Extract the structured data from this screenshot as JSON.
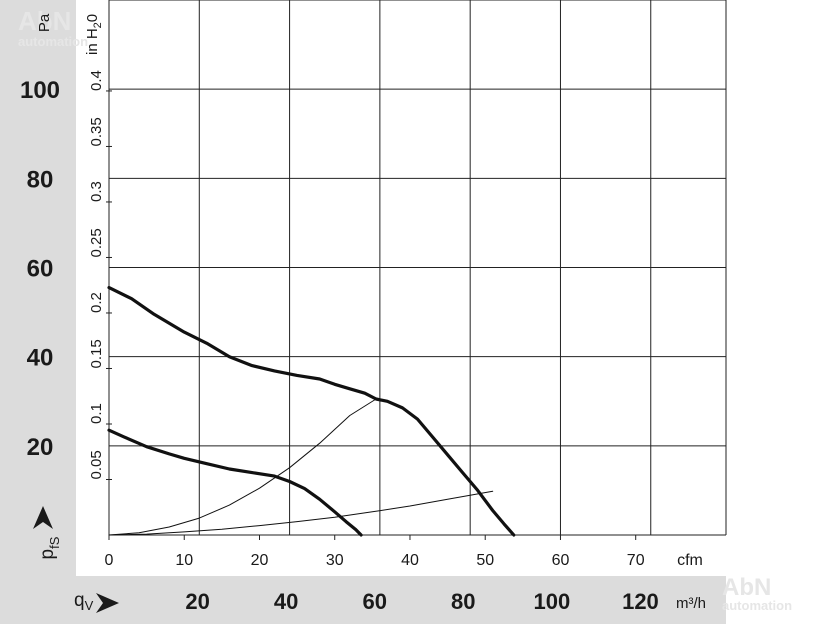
{
  "watermark": {
    "brand": "AbN",
    "sub": "automation"
  },
  "chart_data": {
    "type": "line",
    "x_axis_primary": {
      "unit": "cfm",
      "range": [
        0,
        82
      ],
      "ticks": [
        0,
        10,
        20,
        30,
        40,
        50,
        60,
        70
      ]
    },
    "x_axis_secondary": {
      "symbol_main": "q",
      "symbol_sub": "V",
      "unit": "m³/h",
      "ticks": [
        20,
        40,
        60,
        80,
        100,
        120
      ]
    },
    "y_axis_primary": {
      "unit": "Pa",
      "symbol_main": "p",
      "symbol_sub": "fS",
      "range": [
        0,
        120
      ],
      "ticks": [
        20,
        40,
        60,
        80,
        100
      ]
    },
    "y_axis_secondary": {
      "unit_prefix": "in H",
      "unit_sub": "2",
      "unit_suffix": "0",
      "ticks": [
        "0.05",
        "0.1",
        "0.15",
        "0.2",
        "0.25",
        "0.3",
        "0.35",
        "0.4"
      ],
      "tick_values_pa": [
        12.45,
        24.9,
        37.35,
        49.8,
        62.25,
        74.7,
        87.15,
        99.6
      ]
    },
    "grid": true,
    "series": [
      {
        "weight": "bold",
        "x": [
          0,
          3,
          6,
          10,
          13,
          16,
          19,
          22,
          25,
          28,
          30,
          32,
          34,
          35.5,
          37,
          39,
          41,
          43,
          45,
          47,
          49,
          51,
          52.5,
          53.8
        ],
        "y": [
          55.5,
          53,
          49.5,
          45.5,
          43,
          40,
          38,
          36.8,
          35.8,
          35,
          33.8,
          32.8,
          31.8,
          30.5,
          30,
          28.5,
          26,
          22,
          18,
          14,
          10,
          5.5,
          2.5,
          0
        ]
      },
      {
        "weight": "bold",
        "x": [
          0,
          2,
          5,
          8,
          10,
          13,
          16,
          19,
          22,
          24,
          26,
          28,
          30,
          31.5,
          32.8,
          33.5
        ],
        "y": [
          23.5,
          22,
          19.8,
          18.2,
          17.2,
          16,
          14.8,
          14,
          13.2,
          12,
          10.4,
          8,
          5.2,
          3,
          1.2,
          0
        ]
      },
      {
        "weight": "thin",
        "x": [
          0,
          4,
          8,
          12,
          16,
          20,
          24,
          28,
          32,
          35.5
        ],
        "y": [
          0,
          0.5,
          1.8,
          3.8,
          6.7,
          10.5,
          15.1,
          20.6,
          26.8,
          30.5
        ]
      },
      {
        "weight": "thin",
        "x": [
          0,
          5,
          10,
          15,
          20,
          25,
          30,
          35,
          40,
          45,
          51
        ],
        "y": [
          0,
          0.2,
          0.7,
          1.3,
          2.1,
          3.0,
          4.0,
          5.2,
          6.5,
          8.0,
          9.8
        ]
      }
    ]
  }
}
